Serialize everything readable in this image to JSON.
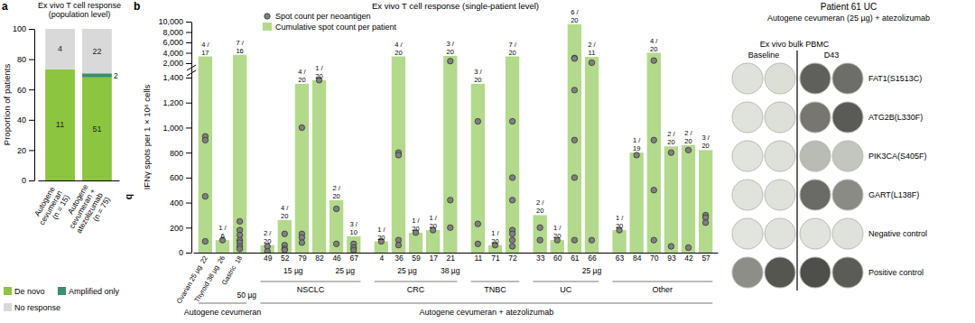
{
  "chart_data": [
    {
      "type": "bar",
      "label": "a",
      "stacked": true,
      "title": [
        "Ex vivo T cell response",
        "(population level)"
      ],
      "ylabel": "Proportion of patients",
      "categories": [
        [
          "Autogene",
          "cevumeran",
          "(n = 15)"
        ],
        [
          "Autogene",
          "cevumeran +",
          "atezolizumab",
          "(n = 75)"
        ]
      ],
      "ylim": [
        0,
        100
      ],
      "yticks": [
        0,
        20,
        40,
        60,
        80,
        100
      ],
      "legend": "bottom",
      "series": [
        {
          "name": "De novo",
          "color": "#8cc540",
          "values": [
            73.33,
            68
          ],
          "counts": [
            11,
            51
          ]
        },
        {
          "name": "Amplified only",
          "color": "#3a8f6d",
          "values": [
            0,
            2.67
          ],
          "counts": [
            null,
            2
          ]
        },
        {
          "name": "No response",
          "color": "#d9d9d9",
          "values": [
            26.67,
            29.33
          ],
          "counts": [
            4,
            22
          ]
        }
      ],
      "annotations": [
        "b"
      ]
    },
    {
      "type": "bar",
      "label": "b",
      "title": "Ex vivo T cell response (single-patient level)",
      "ylabel": "IFNγ spots per 1 × 10⁶ cells",
      "categories": [
        "22",
        "26",
        "18",
        "49",
        "52",
        "79",
        "82",
        "46",
        "67",
        "4",
        "36",
        "59",
        "17",
        "21",
        "11",
        "71",
        "72",
        "33",
        "60",
        "61",
        "66",
        "63",
        "84",
        "70",
        "93",
        "42",
        "57"
      ],
      "ylim": [
        [
          0,
          1400
        ],
        [
          2000,
          10000
        ]
      ],
      "yticks": [
        0,
        200,
        400,
        600,
        800,
        {
          "value": 1000,
          "label": "1,000"
        },
        {
          "value": 1200,
          "label": "1,200"
        },
        {
          "value": 1400,
          "label": "1,400"
        },
        {
          "value": 2000,
          "label": "2,000"
        },
        {
          "value": 4000,
          "label": "4,000"
        },
        {
          "value": 6000,
          "label": "6,000"
        },
        {
          "value": 8000,
          "label": "8,000"
        },
        {
          "value": 10000,
          "label": "10,000"
        }
      ],
      "legend": "top",
      "series": [
        {
          "name": "Spot count per neoantigen",
          "type": "scatter",
          "marker": "circle",
          "color": "#808080",
          "values": [
            [
              930,
              900,
              450,
              90
            ],
            [
              100
            ],
            [
              250,
              180,
              140,
              100,
              80,
              50,
              30
            ],
            [
              50,
              10
            ],
            [
              150,
              60,
              30,
              20
            ],
            [
              1000,
              150,
              120,
              80
            ],
            [
              1380
            ],
            [
              350,
              70
            ],
            [
              70,
              40,
              20
            ],
            [
              90
            ],
            [
              800,
              780,
              100,
              60
            ],
            [
              160
            ],
            [
              180
            ],
            [
              2400,
              420,
              200
            ],
            [
              1050,
              230,
              70
            ],
            [
              60
            ],
            [
              1050,
              600,
              420,
              180,
              150,
              100,
              50
            ],
            [
              200,
              100
            ],
            [
              100
            ],
            [
              3000,
              2900,
              1300,
              900,
              600,
              100
            ],
            [
              2100,
              100
            ],
            [
              180
            ],
            [
              780
            ],
            [
              2500,
              900,
              500,
              100
            ],
            [
              800,
              50
            ],
            [
              820,
              40
            ],
            [
              300,
              280,
              240
            ]
          ]
        },
        {
          "name": "Cumulative spot count per patient",
          "type": "bar",
          "color": "#b3d98c",
          "values": [
            3300,
            100,
            3600,
            60,
            260,
            1350,
            1380,
            420,
            130,
            90,
            3300,
            160,
            180,
            3400,
            1350,
            60,
            3300,
            300,
            100,
            9500,
            3200,
            180,
            800,
            4000,
            850,
            860,
            820
          ],
          "response_labels": [
            [
              "4 /",
              "17"
            ],
            [
              "1 /",
              "6"
            ],
            [
              "7 /",
              "16"
            ],
            [
              "2 /",
              "20"
            ],
            [
              "4 /",
              "20"
            ],
            [
              "4 /",
              "20"
            ],
            [
              "1 /",
              "20"
            ],
            [
              "2 /",
              "20"
            ],
            [
              "3 /",
              "10"
            ],
            [
              "1 /",
              "20"
            ],
            [
              "4 /",
              "20"
            ],
            [
              "1 /",
              "20"
            ],
            [
              "1 /",
              "20"
            ],
            [
              "3 /",
              "20"
            ],
            [
              "3 /",
              "20"
            ],
            [
              "1 /",
              "20"
            ],
            [
              "7 /",
              "20"
            ],
            [
              "2 /",
              "20"
            ],
            [
              "1 /",
              "20"
            ],
            [
              "6 /",
              "20"
            ],
            [
              "2 /",
              "11"
            ],
            [
              "1 /",
              "20"
            ],
            [
              "1 /",
              "19"
            ],
            [
              "4 /",
              "20"
            ],
            [
              "2 /",
              "20"
            ],
            [
              "2 /",
              "20"
            ],
            [
              "3 /",
              "20"
            ]
          ]
        }
      ],
      "doses": [
        {
          "label": "50 µg",
          "from": "18",
          "to": "18"
        },
        {
          "label": "15 µg",
          "from": "49",
          "to": "82"
        },
        {
          "label": "25 µg",
          "from": "46",
          "to": "67"
        },
        {
          "label": "25 µg",
          "from": "4",
          "to": "17"
        },
        {
          "label": "38 µg",
          "from": "21",
          "to": "21"
        },
        {
          "label": "25 µg",
          "from": "11",
          "to": "57"
        }
      ],
      "cancer_types": [
        {
          "label": "Ovarian 25 µg",
          "from": "22",
          "to": "22"
        },
        {
          "label": "Thyroid 38 µg",
          "from": "26",
          "to": "26"
        },
        {
          "label": "Gastric",
          "from": "18",
          "to": "18"
        },
        {
          "label": "NSCLC",
          "from": "49",
          "to": "67"
        },
        {
          "label": "CRC",
          "from": "4",
          "to": "21"
        },
        {
          "label": "TNBC",
          "from": "11",
          "to": "72"
        },
        {
          "label": "UC",
          "from": "33",
          "to": "66"
        },
        {
          "label": "Other",
          "from": "63",
          "to": "57"
        }
      ],
      "treatments": [
        {
          "label": "Autogene cevumeran",
          "from": "22",
          "to": "18"
        },
        {
          "label": "Autogene cevumeran + atezolizumab",
          "from": "49",
          "to": "57"
        }
      ]
    }
  ],
  "image_panel": {
    "title": "Patient 61 UC",
    "subtitle": "Autogene cevumeran (25 µg) + atezolizumab",
    "header": "Ex vivo bulk PBMC",
    "columns": [
      "Baseline",
      "D43"
    ],
    "rows": [
      {
        "label": "FAT1(S1513C)",
        "colors": [
          "#dfe2da",
          "#dcdfd6",
          "#5f605b",
          "#6d6e68"
        ]
      },
      {
        "label": "ATG2B(L330F)",
        "colors": [
          "#e0e3dc",
          "#dde0d8",
          "#77776f",
          "#5a5b56"
        ]
      },
      {
        "label": "PIK3CA(S405F)",
        "colors": [
          "#e1e4dd",
          "#dee1d9",
          "#b9bcb3",
          "#c3c6bd"
        ]
      },
      {
        "label": "GART(L138F)",
        "colors": [
          "#e0e3db",
          "#dfe2da",
          "#6a6b65",
          "#8a8b84"
        ]
      },
      {
        "label": "Negative control",
        "colors": [
          "#e2e5de",
          "#e0e3dc",
          "#e1e4dc",
          "#dfe2db"
        ]
      },
      {
        "label": "Positive control",
        "colors": [
          "#8d8e88",
          "#55564f",
          "#4e4f4a",
          "#5b5c56"
        ]
      }
    ]
  }
}
